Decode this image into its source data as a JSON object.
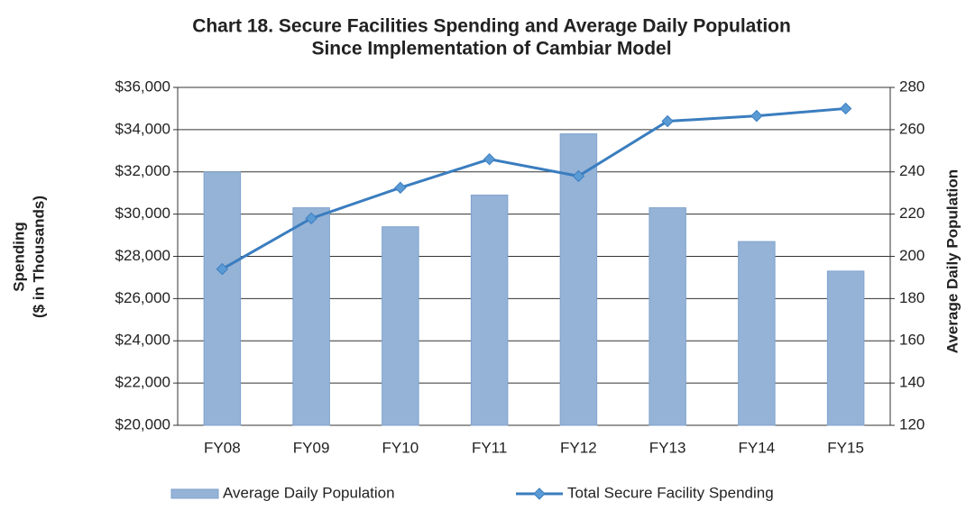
{
  "chart_data": {
    "type": "combo",
    "title": [
      "Chart 18. Secure Facilities Spending and Average Daily Population",
      "Since Implementation of Cambiar Model"
    ],
    "y_label": [
      "Spending",
      "($ in Thousands)"
    ],
    "y2_label": "Average Daily Population",
    "categories": [
      "FY08",
      "FY09",
      "FY10",
      "FY11",
      "FY12",
      "FY13",
      "FY14",
      "FY15"
    ],
    "series": [
      {
        "name": "Average Daily Population",
        "type": "bar",
        "axis": "y2",
        "color": "#95b3d7",
        "values": [
          240,
          223,
          214,
          229,
          258,
          223,
          207,
          193
        ]
      },
      {
        "name": "Total Secure Facility Spending",
        "type": "line",
        "axis": "y",
        "color": "#3a7dbf",
        "values": [
          27400,
          29800,
          31250,
          32600,
          31800,
          34400,
          34650,
          35000
        ]
      }
    ],
    "ylim": [
      20000,
      36000
    ],
    "yticks": [
      {
        "value": 20000,
        "label": "$20,000"
      },
      {
        "value": 22000,
        "label": "$22,000"
      },
      {
        "value": 24000,
        "label": "$24,000"
      },
      {
        "value": 26000,
        "label": "$26,000"
      },
      {
        "value": 28000,
        "label": "$28,000"
      },
      {
        "value": 30000,
        "label": "$30,000"
      },
      {
        "value": 32000,
        "label": "$32,000"
      },
      {
        "value": 34000,
        "label": "$34,000"
      },
      {
        "value": 36000,
        "label": "$36,000"
      }
    ],
    "y2lim": [
      120,
      280
    ],
    "y2ticks": [
      120,
      140,
      160,
      180,
      200,
      220,
      240,
      260,
      280
    ],
    "grid": true,
    "legend": "bottom"
  }
}
